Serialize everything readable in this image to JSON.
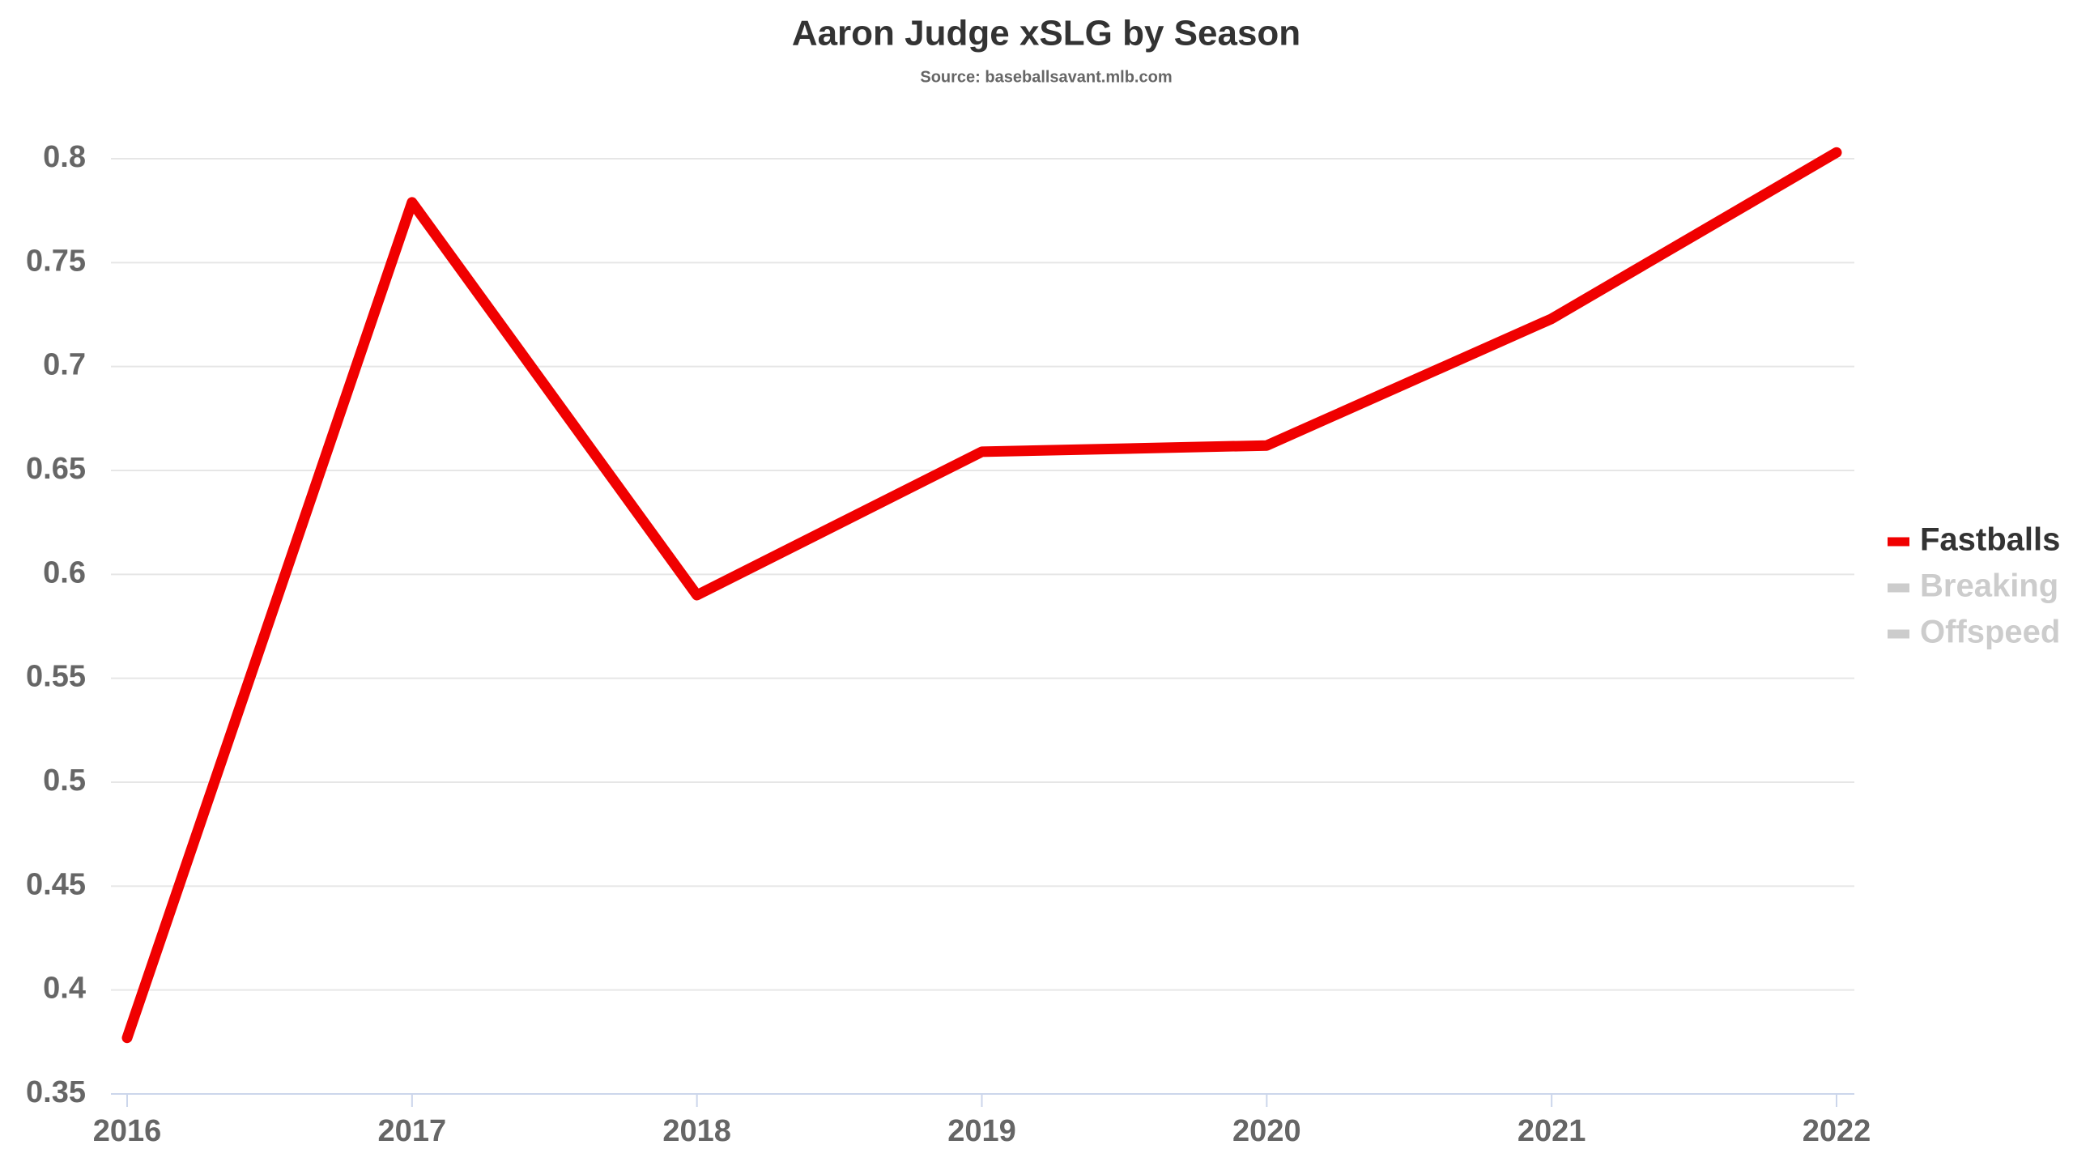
{
  "chart_data": {
    "type": "line",
    "title": "Aaron Judge xSLG by Season",
    "subtitle": "Source: baseballsavant.mlb.com",
    "x": [
      2016,
      2017,
      2018,
      2019,
      2020,
      2021,
      2022
    ],
    "xlim": [
      2016,
      2022
    ],
    "xticks": [
      2016,
      2017,
      2018,
      2019,
      2020,
      2021,
      2022
    ],
    "ylim": [
      0.35,
      0.8
    ],
    "yticks": [
      0.35,
      0.4,
      0.45,
      0.5,
      0.55,
      0.6,
      0.65,
      0.7,
      0.75,
      0.8
    ],
    "grid": true,
    "legend": "right",
    "series": [
      {
        "name": "Fastballs",
        "color": "#f00000",
        "visible": true,
        "values": [
          0.377,
          0.779,
          0.59,
          0.659,
          0.662,
          0.723,
          0.803
        ]
      },
      {
        "name": "Breaking",
        "color": "#cccccc",
        "visible": false
      },
      {
        "name": "Offspeed",
        "color": "#cccccc",
        "visible": false
      }
    ]
  }
}
